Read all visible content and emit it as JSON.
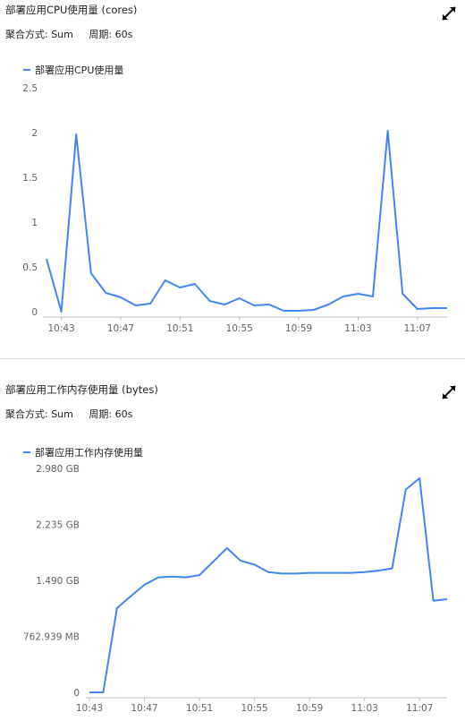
{
  "colors": {
    "series": "#4285f4",
    "axis": "#bdbdbd",
    "text": "#5f6368"
  },
  "icons": {
    "expand": "expand-icon"
  },
  "charts": [
    {
      "title": "部署应用CPU使用量 (cores)",
      "aggregation": "聚合方式: Sum",
      "period": "周期: 60s",
      "legend": "部署应用CPU使用量",
      "y_tick_labels": [
        "0",
        "0.5",
        "1",
        "1.5",
        "2",
        "2.5"
      ],
      "x_tick_labels": [
        "10:43",
        "10:47",
        "10:51",
        "10:55",
        "10:59",
        "11:03",
        "11:07"
      ]
    },
    {
      "title": "部署应用工作内存使用量 (bytes)",
      "aggregation": "聚合方式: Sum",
      "period": "周期: 60s",
      "legend": "部署应用工作内存使用量",
      "y_tick_labels": [
        "0",
        "762.939 MB",
        "1.490 GB",
        "2.235 GB",
        "2.980 GB"
      ],
      "x_tick_labels": [
        "10:43",
        "10:47",
        "10:51",
        "10:55",
        "10:59",
        "11:03",
        "11:07"
      ]
    }
  ],
  "chart_data": [
    {
      "type": "line",
      "title": "部署应用CPU使用量 (cores)",
      "xlabel": "",
      "ylabel": "",
      "ylim": [
        0,
        2.5
      ],
      "x": [
        "10:42",
        "10:43",
        "10:44",
        "10:45",
        "10:46",
        "10:47",
        "10:48",
        "10:49",
        "10:50",
        "10:51",
        "10:52",
        "10:53",
        "10:54",
        "10:55",
        "10:56",
        "10:57",
        "10:58",
        "10:59",
        "11:00",
        "11:01",
        "11:02",
        "11:03",
        "11:04",
        "11:05",
        "11:06",
        "11:07",
        "11:08",
        "11:09"
      ],
      "series": [
        {
          "name": "部署应用CPU使用量",
          "values": [
            0.59,
            0.0,
            1.98,
            0.43,
            0.21,
            0.16,
            0.07,
            0.09,
            0.35,
            0.27,
            0.31,
            0.12,
            0.08,
            0.15,
            0.07,
            0.08,
            0.01,
            0.01,
            0.02,
            0.08,
            0.17,
            0.2,
            0.17,
            2.02,
            0.2,
            0.03,
            0.04,
            0.04
          ]
        }
      ],
      "grid": false,
      "legend_position": "top-left"
    },
    {
      "type": "line",
      "title": "部署应用工作内存使用量 (bytes)",
      "xlabel": "",
      "ylabel": "",
      "ylim_gb": [
        0,
        2.98
      ],
      "x": [
        "10:43",
        "10:44",
        "10:45",
        "10:46",
        "10:47",
        "10:48",
        "10:49",
        "10:50",
        "10:51",
        "10:52",
        "10:53",
        "10:54",
        "10:55",
        "10:56",
        "10:57",
        "10:58",
        "10:59",
        "11:00",
        "11:01",
        "11:02",
        "11:03",
        "11:04",
        "11:05",
        "11:06",
        "11:07",
        "11:08",
        "11:09"
      ],
      "series": [
        {
          "name": "部署应用工作内存使用量",
          "values_gb": [
            0.0,
            0.0,
            1.12,
            1.28,
            1.43,
            1.53,
            1.54,
            1.53,
            1.56,
            1.74,
            1.92,
            1.75,
            1.7,
            1.6,
            1.58,
            1.58,
            1.59,
            1.59,
            1.59,
            1.59,
            1.6,
            1.62,
            1.65,
            2.7,
            2.85,
            1.22,
            1.24
          ]
        }
      ],
      "grid": false,
      "legend_position": "top-left"
    }
  ]
}
